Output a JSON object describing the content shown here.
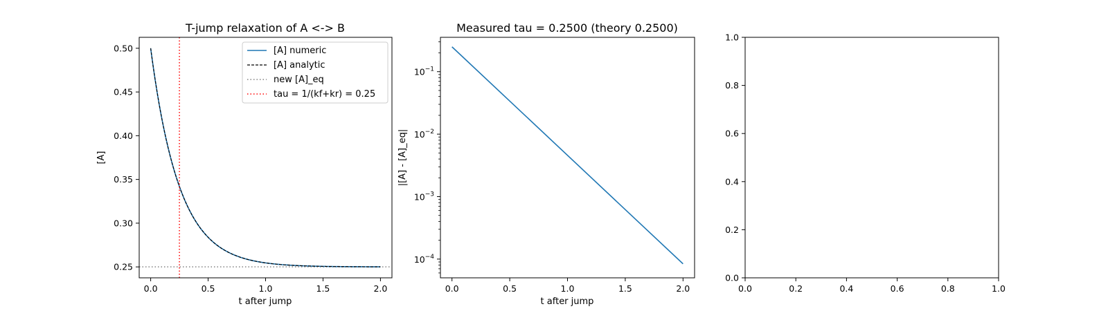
{
  "chart_data": [
    {
      "type": "line",
      "title": "T-jump relaxation of A <-> B",
      "xlabel": "t after jump",
      "ylabel": "[A]",
      "xlim": [
        -0.1,
        2.1
      ],
      "ylim": [
        0.2375,
        0.5125
      ],
      "xticks": [
        "0.0",
        "0.5",
        "1.0",
        "1.5",
        "2.0"
      ],
      "yticks": [
        "0.25",
        "0.30",
        "0.35",
        "0.40",
        "0.45",
        "0.50"
      ],
      "grid": false,
      "legend_position": "top-right",
      "params": {
        "A_eq": 0.25,
        "A0": 0.5,
        "tau": 0.25,
        "t_max": 2.0
      },
      "series": [
        {
          "name": "[A] numeric",
          "style": "solid",
          "color": "#1f77b4",
          "x": [
            0,
            0.125,
            0.25,
            0.375,
            0.5,
            0.75,
            1.0,
            1.25,
            1.5,
            1.75,
            2.0
          ],
          "y": [
            0.5,
            0.4016,
            0.342,
            0.3058,
            0.2838,
            0.2624,
            0.2546,
            0.2517,
            0.2506,
            0.2502,
            0.2501
          ]
        },
        {
          "name": "[A] analytic",
          "style": "dashed",
          "color": "#000000",
          "x": [
            0,
            0.125,
            0.25,
            0.375,
            0.5,
            0.75,
            1.0,
            1.25,
            1.5,
            1.75,
            2.0
          ],
          "y": [
            0.5,
            0.4016,
            0.342,
            0.3058,
            0.2838,
            0.2624,
            0.2546,
            0.2517,
            0.2506,
            0.2502,
            0.2501
          ]
        },
        {
          "name": "new [A]_eq",
          "style": "dotted-horizontal",
          "color": "#808080",
          "y": 0.25
        },
        {
          "name": "tau = 1/(kf+kr) = 0.25",
          "style": "dotted-vertical",
          "color": "#ff0000",
          "x": 0.25
        }
      ]
    },
    {
      "type": "line",
      "title": "Measured tau = 0.2500 (theory 0.2500)",
      "xlabel": "t after jump",
      "ylabel": "|[A] - [A]_eq|",
      "yscale": "log",
      "xlim": [
        -0.1,
        2.1
      ],
      "ylim_log10": [
        -4.3,
        -0.45
      ],
      "xticks": [
        "0.0",
        "0.5",
        "1.0",
        "1.5",
        "2.0"
      ],
      "yticks_exponents": [
        "-1",
        "-2",
        "-3",
        "-4"
      ],
      "ytick_base": "10",
      "grid": false,
      "series": [
        {
          "color": "#1f77b4",
          "x": [
            0,
            2.0
          ],
          "y": [
            0.25,
            8.39e-05
          ]
        }
      ]
    },
    {
      "type": "empty",
      "xlim": [
        0,
        1
      ],
      "ylim": [
        0,
        1
      ],
      "xticks": [
        "0.0",
        "0.2",
        "0.4",
        "0.6",
        "0.8",
        "1.0"
      ],
      "yticks": [
        "0.0",
        "0.2",
        "0.4",
        "0.6",
        "0.8",
        "1.0"
      ]
    }
  ]
}
